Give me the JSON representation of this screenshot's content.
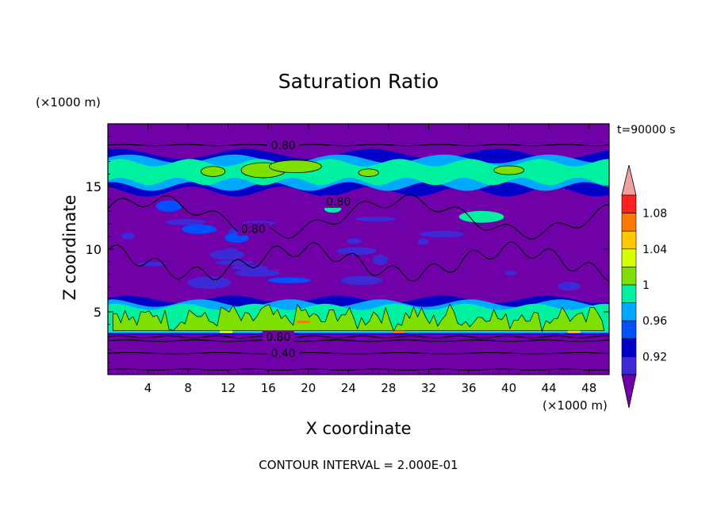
{
  "chart_data": {
    "type": "heatmap",
    "title": "Saturation Ratio",
    "xlabel": "X coordinate",
    "ylabel": "Z coordinate",
    "x_unit": "(×1000 m)",
    "y_unit": "(×1000 m)",
    "time_label": "t=90000 s",
    "footer": "CONTOUR INTERVAL = 2.000E-01",
    "xlim": [
      0,
      50
    ],
    "ylim": [
      0,
      20
    ],
    "x_ticks": [
      "4",
      "8",
      "12",
      "16",
      "20",
      "24",
      "28",
      "32",
      "36",
      "40",
      "44",
      "48"
    ],
    "y_ticks": [
      "5",
      "10",
      "15"
    ],
    "colorbar": {
      "levels": [
        0.9,
        0.92,
        0.94,
        0.96,
        0.98,
        1.0,
        1.02,
        1.04,
        1.06,
        1.08,
        1.1
      ],
      "tick_labels": [
        "0.92",
        "0.96",
        "1",
        "1.04",
        "1.08"
      ],
      "colors": [
        "#7000a8",
        "#3d2ad6",
        "#0000c8",
        "#0050ff",
        "#00a8ff",
        "#00f0a0",
        "#7ee000",
        "#d8ff00",
        "#ffc800",
        "#ff7800",
        "#ff2020",
        "#f0a0a0"
      ]
    },
    "contour_labels": [
      {
        "text": "0.80",
        "x": 17.5,
        "z": 18.3
      },
      {
        "text": "0.80",
        "x": 23,
        "z": 13.8
      },
      {
        "text": "0.80",
        "x": 14.5,
        "z": 11.6
      },
      {
        "text": "0.80",
        "x": 17.0,
        "z": 3.0
      },
      {
        "text": "0.40",
        "x": 17.5,
        "z": 1.7
      }
    ]
  }
}
